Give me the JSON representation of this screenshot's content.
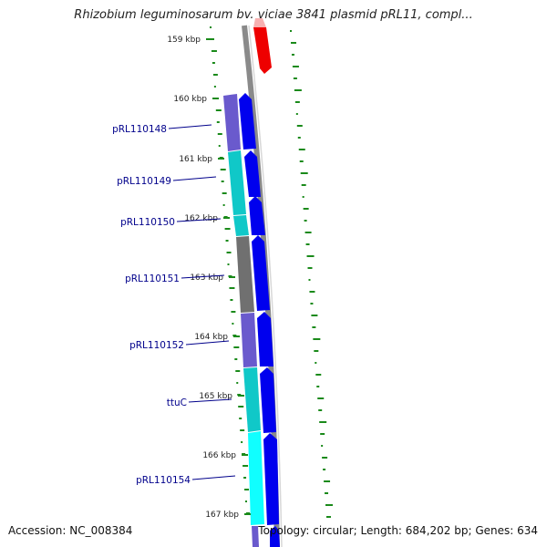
{
  "title": "Rhizobium leguminosarum bv. viciae 3841 plasmid pRL11, compl...",
  "footer": {
    "accession": "Accession: NC_008384",
    "summary": "Topology: circular; Length: 684,202 bp; Genes: 634"
  },
  "scale": {
    "unit": "kbp",
    "ticks": [
      "159 kbp",
      "160 kbp",
      "161 kbp",
      "162 kbp",
      "163 kbp",
      "164 kbp",
      "165 kbp",
      "166 kbp",
      "167 kbp"
    ]
  },
  "colors": {
    "backbone": "#8a8a8a",
    "cds": "#0000ee",
    "gc_tick": "#1a8a1a",
    "highlight": "#ee0000",
    "label_blue": "#00008b"
  },
  "genes": [
    {
      "name": "pRL110148",
      "color": "#6a5acd"
    },
    {
      "name": "pRL110149",
      "color": "#10c8c8"
    },
    {
      "name": "pRL110150",
      "color": "#10c8c8"
    },
    {
      "name": "pRL110151",
      "color": "#707070"
    },
    {
      "name": "pRL110152",
      "color": "#6a5acd"
    },
    {
      "name": "ttuC",
      "color": "#10c8c8"
    },
    {
      "name": "pRL110154",
      "color": "#10ffff"
    }
  ]
}
